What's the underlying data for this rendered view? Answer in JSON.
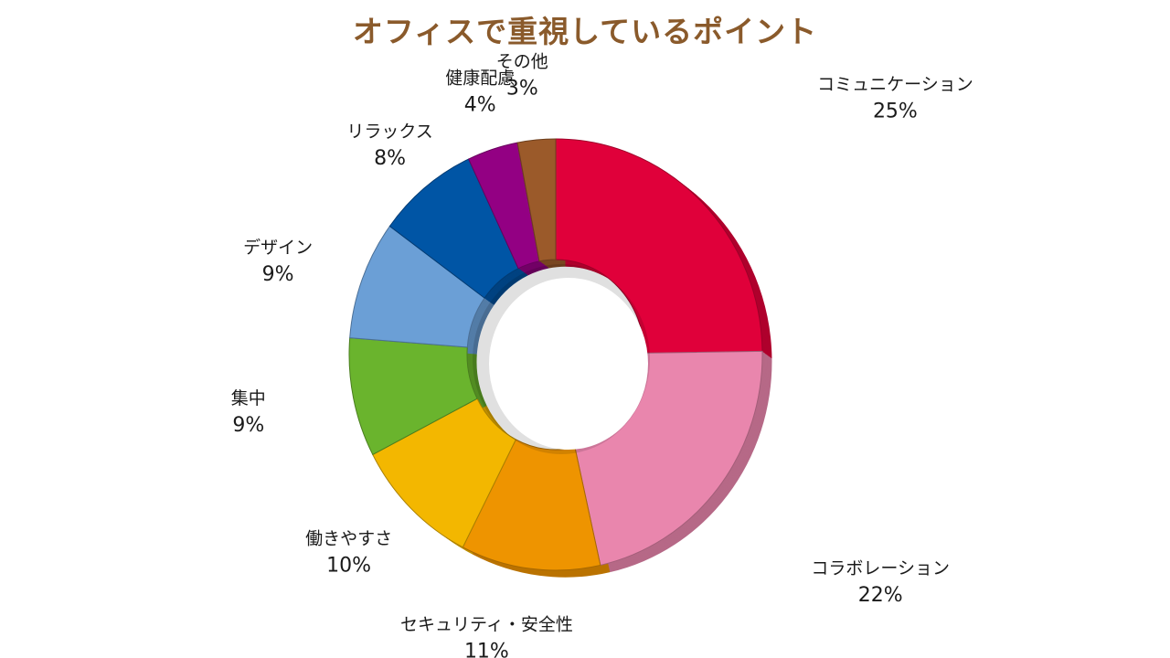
{
  "chart_data": {
    "type": "pie",
    "variant": "donut-3d",
    "title": "オフィスで重視しているポイント",
    "slices": [
      {
        "label": "コミュニケーション",
        "value": 25,
        "value_label": "25%",
        "color": "#e0003a"
      },
      {
        "label": "コラボレーション",
        "value": 22,
        "value_label": "22%",
        "color": "#e986ad"
      },
      {
        "label": "セキュリティ・安全性",
        "value": 11,
        "value_label": "11%",
        "color": "#ee9400"
      },
      {
        "label": "働きやすさ",
        "value": 10,
        "value_label": "10%",
        "color": "#f3b700"
      },
      {
        "label": "集中",
        "value": 9,
        "value_label": "9%",
        "color": "#6ab42d"
      },
      {
        "label": "デザイン",
        "value": 9,
        "value_label": "9%",
        "color": "#6b9fd6"
      },
      {
        "label": "リラックス",
        "value": 8,
        "value_label": "8%",
        "color": "#0055a5"
      },
      {
        "label": "健康配慮",
        "value": 4,
        "value_label": "4%",
        "color": "#930083"
      },
      {
        "label": "その他",
        "value": 3,
        "value_label": "3%",
        "color": "#9b5a2a"
      }
    ],
    "start_angle_deg": 0,
    "direction": "clockwise",
    "legend": "none",
    "title_color": "#8a5a2b"
  }
}
